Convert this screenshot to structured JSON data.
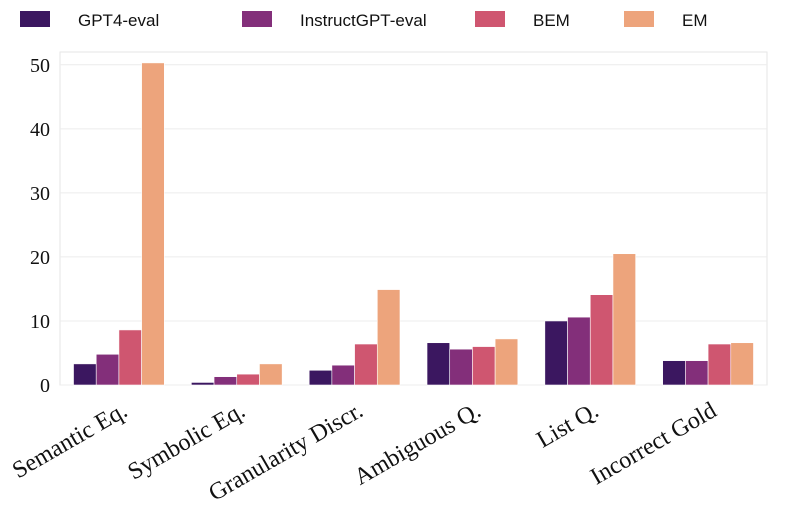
{
  "chart_data": {
    "type": "bar",
    "title": "",
    "xlabel": "",
    "ylabel": "",
    "ylim": [
      0,
      52
    ],
    "yticks": [
      0,
      10,
      20,
      30,
      40,
      50
    ],
    "grid": true,
    "legend_position": "top",
    "categories": [
      "Semantic Eq.",
      "Symbolic Eq.",
      "Granularity Discr.",
      "Ambiguous Q.",
      "List Q.",
      "Incorrect Gold"
    ],
    "series": [
      {
        "name": "GPT4-eval",
        "color": "#3b1760",
        "values": [
          3.3,
          0.4,
          2.3,
          6.6,
          10.0,
          3.8
        ]
      },
      {
        "name": "InstructGPT-eval",
        "color": "#832f7a",
        "values": [
          4.8,
          1.3,
          3.1,
          5.6,
          10.6,
          3.8
        ]
      },
      {
        "name": "BEM",
        "color": "#cf5670",
        "values": [
          8.6,
          1.7,
          6.4,
          6.0,
          14.1,
          6.4
        ]
      },
      {
        "name": "EM",
        "color": "#eda47c",
        "values": [
          50.3,
          3.3,
          14.9,
          7.2,
          20.5,
          6.6
        ]
      }
    ]
  }
}
